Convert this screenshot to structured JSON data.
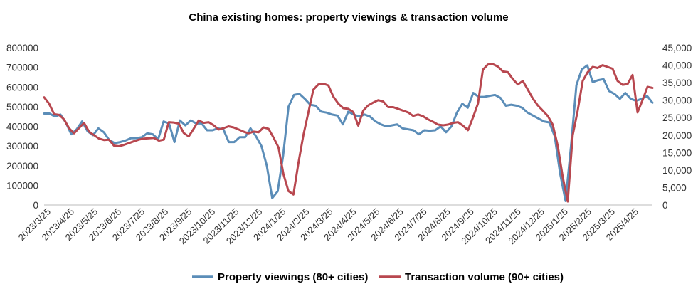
{
  "chart_data": {
    "type": "line",
    "title": "China existing homes: property viewings & transaction volume",
    "x_tick_labels": [
      "2023/3/25",
      "2023/4/25",
      "2023/5/25",
      "2023/6/25",
      "2023/7/25",
      "2023/8/25",
      "2023/9/25",
      "2023/10/25",
      "2023/11/25",
      "2023/12/25",
      "2024/1/25",
      "2024/2/25",
      "2024/3/25",
      "2024/4/25",
      "2024/5/25",
      "2024/6/25",
      "2024/7/25",
      "2024/8/25",
      "2024/9/25",
      "2024/10/25",
      "2024/11/25",
      "2024/12/25",
      "2025/1/25",
      "2025/2/25",
      "2025/3/25",
      "2025/4/25"
    ],
    "y_left": {
      "min": 0,
      "max": 800000,
      "ticks": [
        "0",
        "100000",
        "200000",
        "300000",
        "400000",
        "500000",
        "600000",
        "700000",
        "800000"
      ]
    },
    "y_right": {
      "min": 0,
      "max": 45000,
      "ticks": [
        "0",
        "5,000",
        "10,000",
        "15,000",
        "20,000",
        "25,000",
        "30,000",
        "35,000",
        "40,000",
        "45,000"
      ]
    },
    "series": [
      {
        "name": "Property viewings (80+ cities)",
        "axis": "left",
        "color": "#5b8db8",
        "values": [
          465000,
          465000,
          450000,
          460000,
          420000,
          360000,
          385000,
          425000,
          375000,
          355000,
          390000,
          370000,
          330000,
          315000,
          320000,
          328000,
          340000,
          340000,
          345000,
          365000,
          360000,
          335000,
          425000,
          415000,
          320000,
          430000,
          405000,
          430000,
          415000,
          415000,
          380000,
          380000,
          390000,
          385000,
          320000,
          320000,
          345000,
          345000,
          390000,
          350000,
          300000,
          200000,
          35000,
          70000,
          250000,
          500000,
          560000,
          565000,
          540000,
          510000,
          505000,
          475000,
          470000,
          460000,
          455000,
          410000,
          475000,
          460000,
          450000,
          460000,
          450000,
          425000,
          410000,
          400000,
          405000,
          410000,
          390000,
          385000,
          380000,
          360000,
          380000,
          378000,
          380000,
          400000,
          370000,
          400000,
          470000,
          515000,
          495000,
          570000,
          550000,
          550000,
          555000,
          560000,
          545000,
          505000,
          510000,
          505000,
          495000,
          470000,
          455000,
          440000,
          425000,
          420000,
          350000,
          160000,
          20000,
          300000,
          610000,
          690000,
          710000,
          625000,
          635000,
          640000,
          580000,
          565000,
          540000,
          570000,
          540000,
          530000,
          540000,
          555000,
          520000
        ]
      },
      {
        "name": "Transaction volume (90+ cities)",
        "axis": "right",
        "color": "#b8474f",
        "values": [
          30800,
          29000,
          26000,
          25800,
          24500,
          22000,
          20500,
          22000,
          23500,
          21000,
          20000,
          19000,
          18600,
          18700,
          17000,
          16800,
          17200,
          17700,
          18200,
          18700,
          19000,
          19100,
          19200,
          18400,
          18700,
          23700,
          23600,
          23300,
          20600,
          19600,
          21800,
          24200,
          23500,
          23700,
          22800,
          21600,
          22000,
          22500,
          22200,
          21600,
          21000,
          20500,
          21000,
          20800,
          22200,
          21800,
          19300,
          16500,
          8800,
          4000,
          3000,
          12000,
          20000,
          26500,
          33000,
          34500,
          34700,
          34200,
          31000,
          29000,
          27700,
          27500,
          26600,
          22700,
          27000,
          28500,
          29300,
          30000,
          29600,
          28000,
          28000,
          27500,
          27000,
          26500,
          25500,
          25900,
          25400,
          24500,
          23800,
          23000,
          22800,
          23000,
          23500,
          23700,
          22700,
          21400,
          25000,
          29000,
          38700,
          40200,
          40300,
          39600,
          38200,
          38000,
          36000,
          34500,
          35500,
          33000,
          30500,
          28500,
          27000,
          25500,
          23000,
          17000,
          8000,
          1000,
          20000,
          27000,
          35500,
          38000,
          39500,
          39200,
          40000,
          39500,
          39000,
          35500,
          34400,
          34600,
          37200,
          26500,
          30000,
          33800,
          33500
        ]
      }
    ],
    "legend": {
      "position": "bottom",
      "entries": [
        "Property viewings (80+ cities)",
        "Transaction volume (90+ cities)"
      ]
    }
  }
}
